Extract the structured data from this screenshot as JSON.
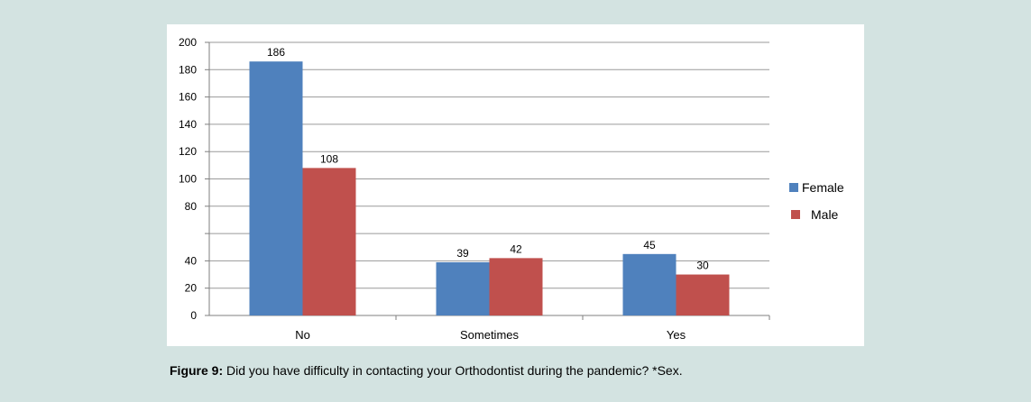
{
  "chart_data": {
    "type": "bar",
    "categories": [
      "No",
      "Sometimes",
      "Yes"
    ],
    "series": [
      {
        "name": "Female",
        "values": [
          186,
          39,
          45
        ],
        "color": "#4f81bd"
      },
      {
        "name": "Male",
        "values": [
          108,
          42,
          30
        ],
        "color": "#c0504d"
      }
    ],
    "ylim": [
      0,
      200
    ],
    "y_ticks": [
      0,
      20,
      40,
      80,
      100,
      120,
      140,
      160,
      180,
      200
    ],
    "grid": true,
    "legend_position": "right"
  },
  "caption": {
    "label": "Figure 9:",
    "text": " Did you have difficulty in contacting your Orthodontist during the pandemic? *Sex."
  },
  "colors": {
    "background": "#d3e3e1",
    "panel": "#ffffff"
  }
}
